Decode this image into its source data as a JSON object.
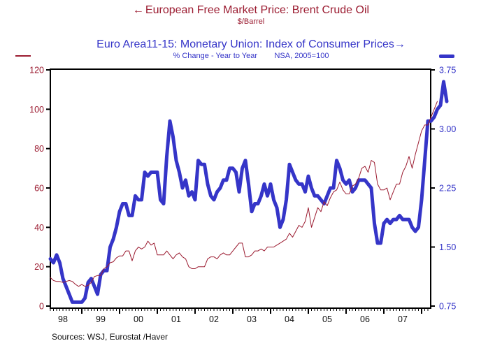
{
  "chart_data": {
    "type": "line",
    "title_oil": "European Free Market Price: Brent Crude Oil",
    "subtitle_oil": "$/Barrel",
    "title_cpi": "Euro Area11-15: Monetary Union: Index of Consumer Prices",
    "subtitle_cpi": "% Change - Year to Year        NSA, 2005=100",
    "arrow_left": "←",
    "arrow_right": "→",
    "source": "Sources:  WSJ, Eurostat /Haver",
    "x_start": "1998-03",
    "x_end": "2008-04",
    "x_tick_labels": [
      "98",
      "99",
      "00",
      "01",
      "02",
      "03",
      "04",
      "05",
      "06",
      "07"
    ],
    "y_left": {
      "label": "$/Barrel",
      "ylim": [
        0,
        120
      ],
      "ticks": [
        0,
        20,
        40,
        60,
        80,
        100,
        120
      ]
    },
    "y_right": {
      "label": "% Change - Year to Year",
      "ylim": [
        0.75,
        3.75
      ],
      "ticks": [
        "0.75",
        "1.50",
        "2.25",
        "3.00",
        "3.75"
      ]
    },
    "grid": false,
    "series": [
      {
        "name": "Brent Crude Oil ($/Barrel)",
        "axis": "left",
        "color": "#9b1b30",
        "values": [
          14.5,
          13,
          12.5,
          12.5,
          12,
          12.5,
          13,
          12.5,
          11,
          10,
          11,
          10,
          10.5,
          12,
          15,
          15.5,
          15.5,
          19,
          20,
          22,
          22.5,
          24.5,
          25.5,
          25.5,
          28,
          28,
          23,
          28,
          30,
          29,
          30,
          33,
          31,
          32,
          26,
          26,
          26,
          28,
          26,
          24,
          26,
          27,
          25,
          24,
          20,
          19,
          19,
          20,
          20,
          20,
          24,
          25,
          25,
          24,
          26,
          27,
          26,
          26,
          28,
          30,
          32,
          32,
          25,
          25,
          26,
          28,
          28,
          29,
          28,
          30,
          30,
          30,
          31,
          32,
          33,
          34,
          37,
          35,
          38,
          41,
          40,
          43,
          50,
          40,
          45,
          50,
          48,
          53,
          51,
          55,
          58,
          59,
          63,
          59,
          57,
          57,
          61,
          62,
          65,
          70,
          71,
          68,
          74,
          73,
          62,
          59,
          59,
          60,
          54,
          58,
          62,
          62,
          68,
          71,
          76,
          70,
          77,
          83,
          89,
          92,
          92,
          96,
          100,
          104
        ]
      },
      {
        "name": "Euro Area CPI (% Change - Year to Year)",
        "axis": "right",
        "color": "#3535c8",
        "values": [
          1.35,
          1.3,
          1.4,
          1.3,
          1.1,
          1.0,
          0.9,
          0.8,
          0.8,
          0.8,
          0.8,
          0.85,
          1.05,
          1.1,
          1.0,
          0.9,
          1.15,
          1.2,
          1.2,
          1.5,
          1.6,
          1.75,
          1.95,
          2.05,
          2.05,
          1.9,
          1.9,
          2.15,
          2.1,
          2.1,
          2.45,
          2.4,
          2.45,
          2.45,
          2.45,
          2.1,
          2.05,
          2.65,
          3.1,
          2.9,
          2.6,
          2.45,
          2.25,
          2.35,
          2.15,
          2.2,
          2.1,
          2.6,
          2.55,
          2.55,
          2.3,
          2.15,
          2.1,
          2.2,
          2.25,
          2.35,
          2.35,
          2.5,
          2.5,
          2.45,
          2.2,
          2.5,
          2.6,
          2.3,
          1.95,
          2.05,
          2.05,
          2.15,
          2.3,
          2.15,
          2.3,
          2.1,
          2.0,
          1.75,
          1.85,
          2.1,
          2.55,
          2.45,
          2.35,
          2.3,
          2.3,
          2.2,
          2.4,
          2.25,
          2.15,
          2.15,
          2.1,
          2.05,
          2.15,
          2.25,
          2.25,
          2.6,
          2.5,
          2.35,
          2.3,
          2.35,
          2.2,
          2.25,
          2.35,
          2.35,
          2.35,
          2.3,
          2.25,
          1.8,
          1.55,
          1.55,
          1.8,
          1.85,
          1.8,
          1.85,
          1.85,
          1.9,
          1.85,
          1.85,
          1.85,
          1.75,
          1.7,
          1.75,
          2.1,
          2.6,
          3.1,
          3.1,
          3.15,
          3.25,
          3.3,
          3.6,
          3.35
        ]
      }
    ]
  }
}
